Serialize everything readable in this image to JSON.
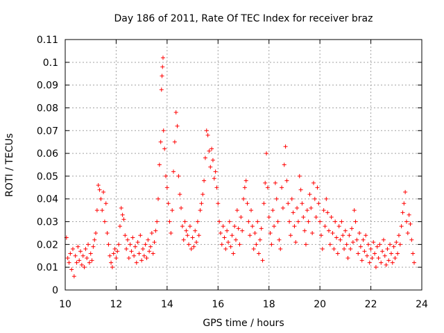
{
  "chart_data": {
    "type": "scatter",
    "title": "Day 186 of 2011, Rate Of TEC Index for receiver braz",
    "xlabel": "GPS time / hours",
    "ylabel": "ROTI / TECUs",
    "xlim": [
      10,
      24
    ],
    "ylim": [
      0,
      0.11
    ],
    "grid": true,
    "marker": "+",
    "marker_color": "#ff0000",
    "x_ticks": [
      10,
      12,
      14,
      16,
      18,
      20,
      22,
      24
    ],
    "x_tick_labels": [
      "10",
      "12",
      "14",
      "16",
      "18",
      "20",
      "22",
      "24"
    ],
    "y_ticks": [
      0,
      0.01,
      0.02,
      0.03,
      0.04,
      0.05,
      0.06,
      0.07,
      0.08,
      0.09,
      0.1,
      0.11
    ],
    "y_tick_labels": [
      "0",
      "0.01",
      "0.02",
      "0.03",
      "0.04",
      "0.05",
      "0.06",
      "0.07",
      "0.08",
      "0.09",
      "0.1",
      "0.11"
    ],
    "series": [
      {
        "points": [
          [
            10.05,
            0.023
          ],
          [
            10.1,
            0.014
          ],
          [
            10.15,
            0.012
          ],
          [
            10.2,
            0.016
          ],
          [
            10.25,
            0.009
          ],
          [
            10.3,
            0.018
          ],
          [
            10.35,
            0.006
          ],
          [
            10.4,
            0.015
          ],
          [
            10.45,
            0.012
          ],
          [
            10.5,
            0.019
          ],
          [
            10.55,
            0.013
          ],
          [
            10.6,
            0.017
          ],
          [
            10.65,
            0.011
          ],
          [
            10.7,
            0.015
          ],
          [
            10.75,
            0.01
          ],
          [
            10.8,
            0.018
          ],
          [
            10.85,
            0.014
          ],
          [
            10.9,
            0.02
          ],
          [
            10.95,
            0.012
          ],
          [
            11.0,
            0.016
          ],
          [
            11.05,
            0.013
          ],
          [
            11.1,
            0.019
          ],
          [
            11.15,
            0.022
          ],
          [
            11.2,
            0.025
          ],
          [
            11.25,
            0.035
          ],
          [
            11.3,
            0.046
          ],
          [
            11.35,
            0.044
          ],
          [
            11.4,
            0.04
          ],
          [
            11.45,
            0.035
          ],
          [
            11.5,
            0.043
          ],
          [
            11.55,
            0.03
          ],
          [
            11.6,
            0.038
          ],
          [
            11.65,
            0.025
          ],
          [
            11.7,
            0.02
          ],
          [
            11.75,
            0.015
          ],
          [
            11.8,
            0.012
          ],
          [
            11.85,
            0.01
          ],
          [
            11.9,
            0.016
          ],
          [
            11.95,
            0.018
          ],
          [
            12.0,
            0.014
          ],
          [
            12.05,
            0.017
          ],
          [
            12.1,
            0.02
          ],
          [
            12.15,
            0.028
          ],
          [
            12.2,
            0.036
          ],
          [
            12.25,
            0.033
          ],
          [
            12.3,
            0.031
          ],
          [
            12.35,
            0.024
          ],
          [
            12.4,
            0.018
          ],
          [
            12.45,
            0.022
          ],
          [
            12.5,
            0.014
          ],
          [
            12.55,
            0.02
          ],
          [
            12.6,
            0.017
          ],
          [
            12.65,
            0.023
          ],
          [
            12.7,
            0.015
          ],
          [
            12.75,
            0.019
          ],
          [
            12.8,
            0.012
          ],
          [
            12.85,
            0.021
          ],
          [
            12.9,
            0.016
          ],
          [
            12.95,
            0.024
          ],
          [
            13.0,
            0.013
          ],
          [
            13.05,
            0.018
          ],
          [
            13.1,
            0.015
          ],
          [
            13.15,
            0.02
          ],
          [
            13.2,
            0.014
          ],
          [
            13.25,
            0.022
          ],
          [
            13.3,
            0.017
          ],
          [
            13.35,
            0.019
          ],
          [
            13.4,
            0.025
          ],
          [
            13.45,
            0.016
          ],
          [
            13.5,
            0.021
          ],
          [
            13.55,
            0.026
          ],
          [
            13.6,
            0.03
          ],
          [
            13.65,
            0.04
          ],
          [
            13.7,
            0.055
          ],
          [
            13.75,
            0.065
          ],
          [
            13.78,
            0.088
          ],
          [
            13.8,
            0.094
          ],
          [
            13.82,
            0.098
          ],
          [
            13.84,
            0.102
          ],
          [
            13.86,
            0.07
          ],
          [
            13.9,
            0.062
          ],
          [
            13.95,
            0.05
          ],
          [
            14.0,
            0.045
          ],
          [
            14.05,
            0.038
          ],
          [
            14.1,
            0.03
          ],
          [
            14.15,
            0.025
          ],
          [
            14.2,
            0.035
          ],
          [
            14.25,
            0.052
          ],
          [
            14.3,
            0.065
          ],
          [
            14.35,
            0.078
          ],
          [
            14.4,
            0.072
          ],
          [
            14.45,
            0.05
          ],
          [
            14.5,
            0.042
          ],
          [
            14.55,
            0.036
          ],
          [
            14.6,
            0.028
          ],
          [
            14.65,
            0.022
          ],
          [
            14.7,
            0.03
          ],
          [
            14.75,
            0.026
          ],
          [
            14.8,
            0.024
          ],
          [
            14.85,
            0.02
          ],
          [
            14.9,
            0.028
          ],
          [
            14.95,
            0.018
          ],
          [
            15.0,
            0.023
          ],
          [
            15.05,
            0.019
          ],
          [
            15.1,
            0.026
          ],
          [
            15.15,
            0.021
          ],
          [
            15.2,
            0.03
          ],
          [
            15.25,
            0.024
          ],
          [
            15.3,
            0.035
          ],
          [
            15.35,
            0.038
          ],
          [
            15.4,
            0.042
          ],
          [
            15.45,
            0.048
          ],
          [
            15.5,
            0.058
          ],
          [
            15.55,
            0.07
          ],
          [
            15.6,
            0.068
          ],
          [
            15.65,
            0.061
          ],
          [
            15.7,
            0.054
          ],
          [
            15.75,
            0.062
          ],
          [
            15.8,
            0.057
          ],
          [
            15.85,
            0.049
          ],
          [
            15.9,
            0.052
          ],
          [
            15.95,
            0.045
          ],
          [
            16.0,
            0.038
          ],
          [
            16.05,
            0.03
          ],
          [
            16.1,
            0.025
          ],
          [
            16.15,
            0.02
          ],
          [
            16.2,
            0.028
          ],
          [
            16.25,
            0.023
          ],
          [
            16.3,
            0.018
          ],
          [
            16.35,
            0.026
          ],
          [
            16.4,
            0.021
          ],
          [
            16.45,
            0.03
          ],
          [
            16.5,
            0.019
          ],
          [
            16.55,
            0.024
          ],
          [
            16.6,
            0.016
          ],
          [
            16.65,
            0.028
          ],
          [
            16.7,
            0.022
          ],
          [
            16.75,
            0.035
          ],
          [
            16.8,
            0.027
          ],
          [
            16.85,
            0.02
          ],
          [
            16.9,
            0.032
          ],
          [
            16.95,
            0.026
          ],
          [
            17.0,
            0.04
          ],
          [
            17.05,
            0.045
          ],
          [
            17.1,
            0.048
          ],
          [
            17.15,
            0.038
          ],
          [
            17.2,
            0.03
          ],
          [
            17.25,
            0.024
          ],
          [
            17.3,
            0.035
          ],
          [
            17.35,
            0.028
          ],
          [
            17.4,
            0.018
          ],
          [
            17.45,
            0.025
          ],
          [
            17.5,
            0.02
          ],
          [
            17.55,
            0.03
          ],
          [
            17.6,
            0.016
          ],
          [
            17.65,
            0.022
          ],
          [
            17.7,
            0.027
          ],
          [
            17.75,
            0.013
          ],
          [
            17.8,
            0.038
          ],
          [
            17.85,
            0.047
          ],
          [
            17.9,
            0.06
          ],
          [
            17.95,
            0.045
          ],
          [
            18.0,
            0.032
          ],
          [
            18.05,
            0.025
          ],
          [
            18.1,
            0.02
          ],
          [
            18.15,
            0.035
          ],
          [
            18.2,
            0.028
          ],
          [
            18.25,
            0.047
          ],
          [
            18.3,
            0.04
          ],
          [
            18.35,
            0.03
          ],
          [
            18.4,
            0.022
          ],
          [
            18.45,
            0.018
          ],
          [
            18.5,
            0.045
          ],
          [
            18.55,
            0.036
          ],
          [
            18.6,
            0.055
          ],
          [
            18.65,
            0.063
          ],
          [
            18.7,
            0.048
          ],
          [
            18.75,
            0.038
          ],
          [
            18.8,
            0.03
          ],
          [
            18.85,
            0.024
          ],
          [
            18.9,
            0.04
          ],
          [
            18.95,
            0.034
          ],
          [
            19.0,
            0.028
          ],
          [
            19.05,
            0.021
          ],
          [
            19.1,
            0.036
          ],
          [
            19.15,
            0.03
          ],
          [
            19.2,
            0.05
          ],
          [
            19.25,
            0.044
          ],
          [
            19.3,
            0.038
          ],
          [
            19.35,
            0.032
          ],
          [
            19.4,
            0.026
          ],
          [
            19.45,
            0.02
          ],
          [
            19.5,
            0.035
          ],
          [
            19.55,
            0.03
          ],
          [
            19.6,
            0.042
          ],
          [
            19.65,
            0.036
          ],
          [
            19.7,
            0.025
          ],
          [
            19.75,
            0.047
          ],
          [
            19.8,
            0.04
          ],
          [
            19.85,
            0.032
          ],
          [
            19.9,
            0.045
          ],
          [
            19.95,
            0.038
          ],
          [
            20.0,
            0.03
          ],
          [
            20.05,
            0.024
          ],
          [
            20.1,
            0.018
          ],
          [
            20.15,
            0.035
          ],
          [
            20.2,
            0.028
          ],
          [
            20.25,
            0.04
          ],
          [
            20.3,
            0.034
          ],
          [
            20.35,
            0.026
          ],
          [
            20.4,
            0.02
          ],
          [
            20.45,
            0.032
          ],
          [
            20.5,
            0.025
          ],
          [
            20.55,
            0.018
          ],
          [
            20.6,
            0.03
          ],
          [
            20.65,
            0.023
          ],
          [
            20.7,
            0.016
          ],
          [
            20.75,
            0.028
          ],
          [
            20.8,
            0.022
          ],
          [
            20.85,
            0.03
          ],
          [
            20.9,
            0.024
          ],
          [
            20.95,
            0.018
          ],
          [
            21.0,
            0.026
          ],
          [
            21.05,
            0.02
          ],
          [
            21.1,
            0.014
          ],
          [
            21.15,
            0.024
          ],
          [
            21.2,
            0.018
          ],
          [
            21.25,
            0.027
          ],
          [
            21.3,
            0.021
          ],
          [
            21.35,
            0.035
          ],
          [
            21.4,
            0.03
          ],
          [
            21.45,
            0.022
          ],
          [
            21.5,
            0.016
          ],
          [
            21.55,
            0.025
          ],
          [
            21.6,
            0.019
          ],
          [
            21.65,
            0.013
          ],
          [
            21.7,
            0.022
          ],
          [
            21.75,
            0.017
          ],
          [
            21.8,
            0.024
          ],
          [
            21.85,
            0.015
          ],
          [
            21.9,
            0.02
          ],
          [
            21.95,
            0.012
          ],
          [
            22.0,
            0.018
          ],
          [
            22.05,
            0.014
          ],
          [
            22.1,
            0.021
          ],
          [
            22.15,
            0.016
          ],
          [
            22.2,
            0.01
          ],
          [
            22.25,
            0.019
          ],
          [
            22.3,
            0.014
          ],
          [
            22.35,
            0.02
          ],
          [
            22.4,
            0.012
          ],
          [
            22.45,
            0.017
          ],
          [
            22.5,
            0.022
          ],
          [
            22.55,
            0.015
          ],
          [
            22.6,
            0.011
          ],
          [
            22.65,
            0.018
          ],
          [
            22.7,
            0.013
          ],
          [
            22.75,
            0.02
          ],
          [
            22.8,
            0.016
          ],
          [
            22.85,
            0.012
          ],
          [
            22.9,
            0.019
          ],
          [
            22.95,
            0.014
          ],
          [
            23.0,
            0.021
          ],
          [
            23.05,
            0.016
          ],
          [
            23.1,
            0.024
          ],
          [
            23.15,
            0.02
          ],
          [
            23.2,
            0.028
          ],
          [
            23.25,
            0.034
          ],
          [
            23.3,
            0.038
          ],
          [
            23.35,
            0.043
          ],
          [
            23.4,
            0.03
          ],
          [
            23.45,
            0.025
          ],
          [
            23.5,
            0.033
          ],
          [
            23.55,
            0.029
          ],
          [
            23.6,
            0.022
          ],
          [
            23.65,
            0.016
          ],
          [
            23.7,
            0.012
          ]
        ]
      }
    ]
  }
}
